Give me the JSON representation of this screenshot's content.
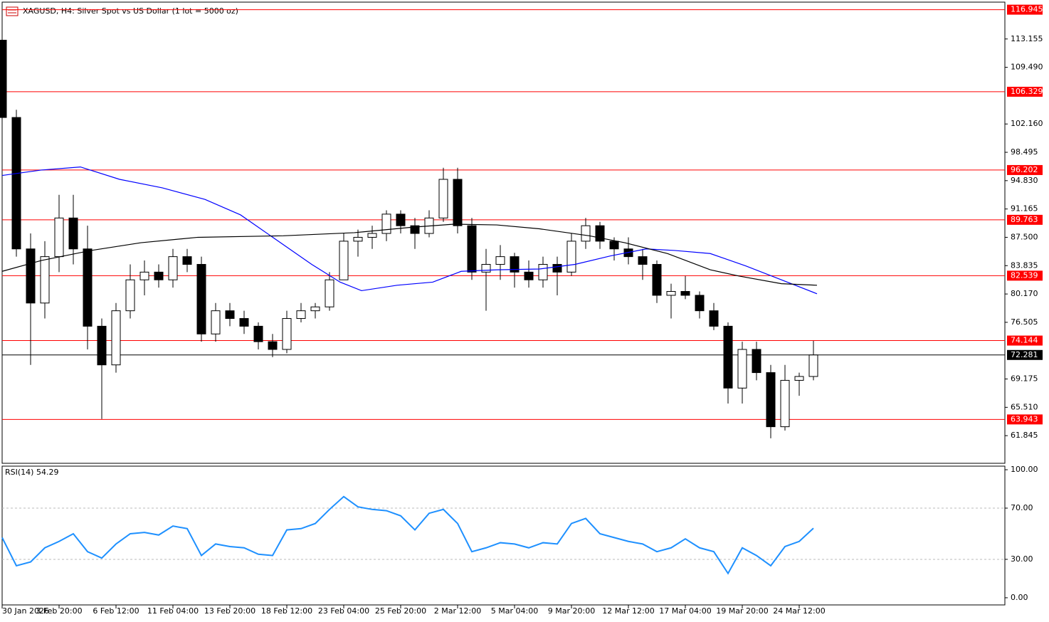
{
  "chart_data": [
    {
      "type": "candlestick",
      "title": "XAGUSD, H4:  Silver Spot vs US Dollar (1 lot = 5000 oz)",
      "x": [
        0,
        4,
        8,
        12,
        16,
        20,
        24,
        28,
        32,
        36,
        40,
        44,
        48,
        52,
        56,
        60,
        64,
        68,
        72,
        76,
        80,
        84,
        88,
        92,
        96,
        100,
        104,
        108,
        112,
        116,
        120,
        124,
        128,
        132,
        136,
        140,
        144,
        148,
        152,
        156,
        160,
        164,
        168,
        172,
        176,
        180,
        184,
        188,
        192,
        196,
        200,
        204,
        208,
        212,
        216,
        220,
        224,
        228
      ],
      "open": [
        113,
        103,
        86,
        79,
        85,
        90,
        86,
        76,
        71,
        78,
        82,
        83,
        82,
        85,
        84,
        75,
        78,
        77,
        76,
        74,
        73,
        77,
        78,
        78.5,
        82,
        87,
        87.5,
        88,
        90.5,
        89,
        88,
        90,
        95,
        89,
        83,
        84,
        85,
        83,
        82,
        84,
        83,
        87,
        89,
        87,
        86,
        85,
        84,
        80,
        80.5,
        80,
        78,
        76,
        68,
        73,
        70,
        63,
        69,
        69.5
      ],
      "high": [
        113.5,
        104,
        88,
        87,
        93,
        93,
        89,
        77,
        79,
        84,
        84.5,
        84,
        86,
        86,
        85,
        79,
        79,
        78,
        76.5,
        75,
        78,
        79,
        79,
        83,
        88,
        88.5,
        89,
        91,
        91,
        90,
        91,
        96.5,
        96.5,
        90,
        86,
        86.5,
        85.5,
        84.5,
        85,
        85,
        88,
        90,
        89.5,
        87.5,
        87.5,
        86,
        84.5,
        81.5,
        82.5,
        80.5,
        79,
        76.5,
        74,
        74,
        71,
        71,
        70,
        74.1
      ],
      "low": [
        101,
        85,
        71,
        77,
        83,
        84,
        73,
        64,
        70,
        77,
        80,
        81,
        81,
        83,
        74,
        74,
        76,
        75,
        73,
        72,
        72.5,
        76.5,
        77,
        78,
        82,
        85,
        86,
        87,
        88,
        86,
        87.5,
        89.5,
        88,
        82,
        78,
        82,
        81,
        81,
        81,
        80,
        82.5,
        86,
        86,
        84.5,
        84,
        82,
        79,
        77,
        79.5,
        77,
        75.5,
        66,
        66,
        69,
        61.5,
        62.5,
        67,
        69
      ],
      "close": [
        103,
        86,
        79,
        85,
        90,
        86,
        76,
        71,
        78,
        82,
        83,
        82,
        85,
        84,
        75,
        78,
        77,
        76,
        74,
        73,
        77,
        78,
        78.5,
        82,
        87,
        87.5,
        88,
        90.5,
        89,
        88,
        90,
        95,
        89,
        83,
        84,
        85,
        83,
        82,
        84,
        83,
        87,
        89,
        87,
        86,
        85,
        84,
        80,
        80.5,
        80,
        78,
        76,
        68,
        73,
        70,
        63,
        69,
        69.5,
        72.281
      ],
      "series": [
        {
          "color": "#0000ff",
          "x": [
            0,
            11,
            22,
            33,
            45,
            57,
            67,
            77,
            87,
            95,
            101,
            111,
            121,
            129,
            139,
            151,
            161,
            171,
            181,
            189,
            199,
            209,
            219,
            229
          ],
          "values": [
            95.5,
            96.2,
            96.6,
            95.0,
            93.9,
            92.4,
            90.4,
            87.2,
            84.0,
            81.7,
            80.6,
            81.3,
            81.7,
            83.1,
            83.3,
            83.4,
            84.0,
            85.1,
            86.0,
            85.8,
            85.4,
            83.8,
            82.0,
            80.2
          ]
        },
        {
          "color": "#000000",
          "x": [
            0,
            11,
            25,
            39,
            55,
            79,
            99,
            115,
            127,
            139,
            151,
            165,
            175,
            187,
            199,
            207,
            219,
            229
          ],
          "values": [
            83.1,
            84.5,
            85.8,
            86.8,
            87.5,
            87.7,
            88.1,
            88.8,
            89.2,
            89.1,
            88.6,
            87.7,
            86.8,
            85.4,
            83.3,
            82.5,
            81.5,
            81.3
          ]
        }
      ],
      "xlim": [
        0,
        281.8
      ],
      "ylim": [
        58.27,
        117.92
      ],
      "yticks": [
        113.155,
        {
          "value": 109.49,
          "label": "109.490"
        },
        {
          "value": 102.16,
          "label": "102.160"
        },
        98.495,
        {
          "value": 94.83,
          "label": "94.830"
        },
        91.165,
        {
          "value": 87.5,
          "label": "87.500"
        },
        83.835,
        {
          "value": 80.17,
          "label": "80.170"
        },
        76.505,
        69.175,
        {
          "value": 65.51,
          "label": "65.510"
        },
        61.845
      ],
      "levels": [
        116.945,
        106.329,
        96.202,
        89.763,
        82.539,
        74.144,
        63.943
      ],
      "level_color": "#ff0000",
      "last_price": 72.281
    },
    {
      "type": "line",
      "title": "RSI(14) 54.29",
      "color": "#1e90ff",
      "x": [
        0,
        4,
        8,
        12,
        16,
        20,
        24,
        28,
        32,
        36,
        40,
        44,
        48,
        52,
        56,
        60,
        64,
        68,
        72,
        76,
        80,
        84,
        88,
        92,
        96,
        100,
        104,
        108,
        112,
        116,
        120,
        124,
        128,
        132,
        136,
        140,
        144,
        148,
        152,
        156,
        160,
        164,
        168,
        172,
        176,
        180,
        184,
        188,
        192,
        196,
        200,
        204,
        208,
        212,
        216,
        220,
        224,
        228
      ],
      "values": [
        47,
        25,
        28,
        39,
        44,
        50,
        36,
        31,
        42,
        50,
        51,
        49,
        56,
        54,
        33,
        42,
        40,
        39,
        34,
        33,
        53,
        54,
        58,
        69,
        79,
        71,
        69,
        68,
        64,
        53,
        66,
        69,
        58,
        36,
        39,
        43,
        42,
        39,
        43,
        42,
        58,
        62,
        50,
        47,
        44,
        42,
        36,
        39,
        46,
        39,
        36,
        19,
        39,
        33,
        25,
        40,
        44,
        54.29
      ],
      "xlim": [
        0,
        281.8
      ],
      "ylim": [
        -5.6,
        102.8
      ],
      "yticks": [
        {
          "value": 100,
          "label": "100.00"
        },
        {
          "value": 70,
          "label": "70.00"
        },
        {
          "value": 30,
          "label": "30.00"
        },
        {
          "value": 0,
          "label": "0.00"
        }
      ],
      "levels": [
        70,
        30
      ],
      "xticks": [
        {
          "value": 0,
          "label": "30 Jan 2026"
        },
        {
          "value": 16,
          "label": "3 Feb 20:00"
        },
        {
          "value": 32,
          "label": "6 Feb 12:00"
        },
        {
          "value": 48,
          "label": "11 Feb 04:00"
        },
        {
          "value": 64,
          "label": "13 Feb 20:00"
        },
        {
          "value": 80,
          "label": "18 Feb 12:00"
        },
        {
          "value": 96,
          "label": "23 Feb 04:00"
        },
        {
          "value": 112,
          "label": "25 Feb 20:00"
        },
        {
          "value": 128,
          "label": "2 Mar 12:00"
        },
        {
          "value": 144,
          "label": "5 Mar 04:00"
        },
        {
          "value": 160,
          "label": "9 Mar 20:00"
        },
        {
          "value": 176,
          "label": "12 Mar 12:00"
        },
        {
          "value": 192,
          "label": "17 Mar 04:00"
        },
        {
          "value": 208,
          "label": "19 Mar 20:00"
        },
        {
          "value": 224,
          "label": "24 Mar 12:00"
        }
      ]
    }
  ]
}
